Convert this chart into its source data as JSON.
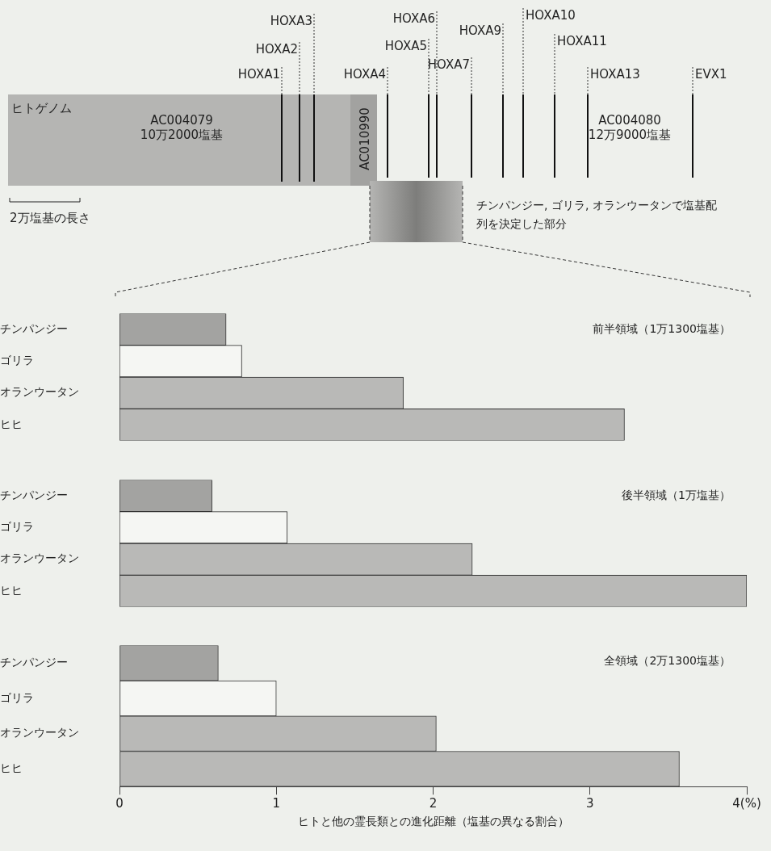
{
  "chart_data": [
    {
      "type": "other",
      "annotations": [
        "ヒトゲノム",
        "AC004079",
        "10万2000塩基",
        "AC010990",
        "AC004080",
        "12万9000塩基",
        "HOXA1",
        "HOXA2",
        "HOXA3",
        "HOXA4",
        "HOXA5",
        "HOXA6",
        "HOXA7",
        "HOXA9",
        "HOXA10",
        "HOXA11",
        "HOXA13",
        "EVX1",
        "2万塩基の長さ",
        "チンパンジー, ゴリラ, オランウータンで塩基配列を決定した部分"
      ]
    },
    {
      "type": "bar",
      "orientation": "horizontal",
      "title": "前半領域（1万1300塩基）",
      "categories": [
        "チンパンジー",
        "ゴリラ",
        "オランウータン",
        "ヒヒ"
      ],
      "values": [
        0.68,
        0.78,
        1.81,
        3.22
      ],
      "colors": [
        "#a3a3a1",
        "#f5f6f3",
        "#b9b9b7",
        "#b9b9b7"
      ],
      "xlim": [
        0,
        4
      ],
      "tick_labels": "y",
      "grid": false
    },
    {
      "type": "bar",
      "orientation": "horizontal",
      "title": "後半領域（1万塩基）",
      "categories": [
        "チンパンジー",
        "ゴリラ",
        "オランウータン",
        "ヒヒ"
      ],
      "values": [
        0.59,
        1.07,
        2.25,
        4.0
      ],
      "colors": [
        "#a3a3a1",
        "#f5f6f3",
        "#b9b9b7",
        "#b9b9b7"
      ],
      "xlim": [
        0,
        4
      ],
      "tick_labels": "y",
      "grid": false
    },
    {
      "type": "bar",
      "orientation": "horizontal",
      "title": "全領域（2万1300塩基）",
      "xlabel": "ヒトと他の霊長類との進化距離（塩基の異なる割合）",
      "categories": [
        "チンパンジー",
        "ゴリラ",
        "オランウータン",
        "ヒヒ"
      ],
      "values": [
        0.63,
        1.0,
        2.02,
        3.57
      ],
      "colors": [
        "#a3a3a1",
        "#f5f6f3",
        "#b9b9b7",
        "#b9b9b7"
      ],
      "xlim": [
        0,
        4
      ],
      "xticks": [
        0,
        1,
        2,
        3,
        {
          "value": 4,
          "label": "4(%)"
        }
      ],
      "grid": false
    }
  ]
}
